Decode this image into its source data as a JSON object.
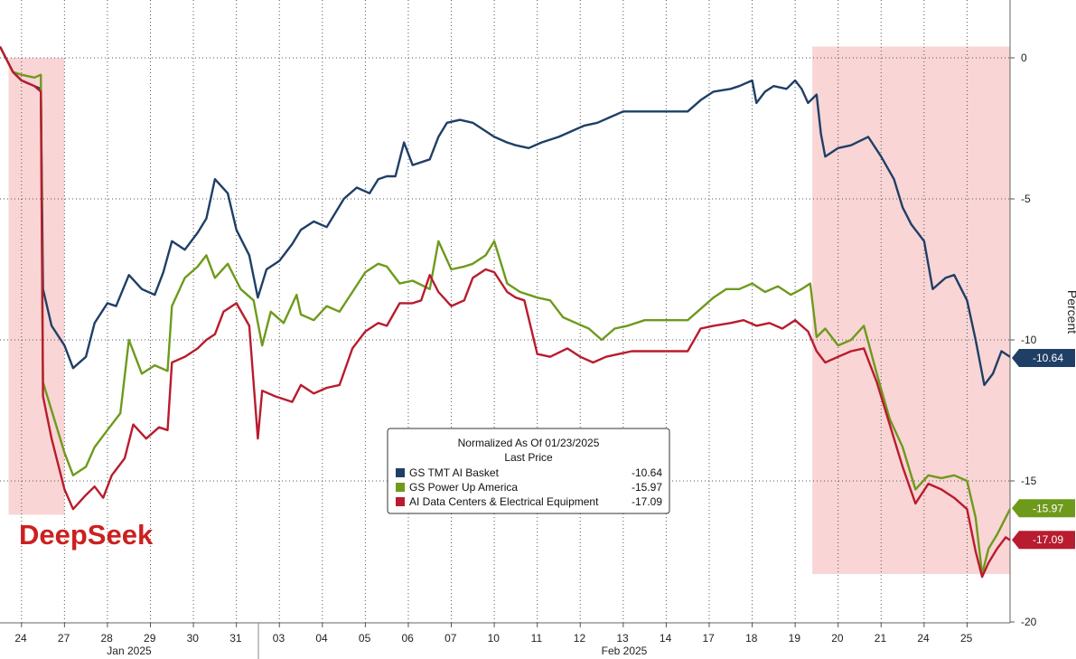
{
  "chart_data": {
    "type": "line",
    "title": "Normalized As Of 01/23/2025",
    "subtitle": "Last Price",
    "ylabel": "Percent",
    "ylim": [
      -20,
      1.5
    ],
    "yticks": [
      0,
      -5,
      -10,
      -15,
      -20
    ],
    "grid": true,
    "legend_position": "bottom-center",
    "x_ticks": [
      "24",
      "27",
      "28",
      "29",
      "30",
      "31",
      "03",
      "04",
      "05",
      "06",
      "07",
      "10",
      "11",
      "12",
      "13",
      "14",
      "17",
      "18",
      "19",
      "20",
      "21",
      "24",
      "25"
    ],
    "month_labels": [
      "Jan 2025",
      "Feb 2025"
    ],
    "x_range": [
      0,
      23.5
    ],
    "shaded_regions": [
      {
        "label": "DeepSeek",
        "from": 0.2,
        "to": 1.5,
        "y_from": 0,
        "y_to": -16.2
      },
      {
        "label": "",
        "from": 18.9,
        "to": 23.5,
        "y_from": 0.4,
        "y_to": -18.3
      }
    ],
    "annotations": [
      {
        "text": "DeepSeek"
      }
    ],
    "series": [
      {
        "name": "GS TMT AI Basket",
        "color": "#1f3f66",
        "last": "-10.64",
        "points": [
          [
            0.0,
            0.4
          ],
          [
            0.3,
            -0.5
          ],
          [
            0.5,
            -0.8
          ],
          [
            0.8,
            -1.0
          ],
          [
            0.95,
            -1.1
          ],
          [
            1.0,
            -8.2
          ],
          [
            1.2,
            -9.5
          ],
          [
            1.5,
            -10.2
          ],
          [
            1.7,
            -11.0
          ],
          [
            2.0,
            -10.6
          ],
          [
            2.2,
            -9.4
          ],
          [
            2.5,
            -8.7
          ],
          [
            2.7,
            -8.8
          ],
          [
            3.0,
            -7.7
          ],
          [
            3.3,
            -8.2
          ],
          [
            3.6,
            -8.4
          ],
          [
            3.8,
            -7.6
          ],
          [
            4.0,
            -6.5
          ],
          [
            4.3,
            -6.8
          ],
          [
            4.6,
            -6.2
          ],
          [
            4.8,
            -5.7
          ],
          [
            5.0,
            -4.3
          ],
          [
            5.3,
            -4.8
          ],
          [
            5.5,
            -6.1
          ],
          [
            5.8,
            -7.0
          ],
          [
            6.0,
            -8.5
          ],
          [
            6.2,
            -7.5
          ],
          [
            6.5,
            -7.2
          ],
          [
            6.8,
            -6.6
          ],
          [
            7.0,
            -6.1
          ],
          [
            7.3,
            -5.8
          ],
          [
            7.6,
            -6.0
          ],
          [
            8.0,
            -5.0
          ],
          [
            8.3,
            -4.6
          ],
          [
            8.6,
            -4.8
          ],
          [
            8.8,
            -4.3
          ],
          [
            9.0,
            -4.2
          ],
          [
            9.2,
            -4.2
          ],
          [
            9.4,
            -3.0
          ],
          [
            9.6,
            -3.8
          ],
          [
            10.0,
            -3.6
          ],
          [
            10.2,
            -2.8
          ],
          [
            10.4,
            -2.3
          ],
          [
            10.7,
            -2.2
          ],
          [
            11.0,
            -2.3
          ],
          [
            11.3,
            -2.6
          ],
          [
            11.5,
            -2.8
          ],
          [
            11.8,
            -3.0
          ],
          [
            12.0,
            -3.1
          ],
          [
            12.3,
            -3.2
          ],
          [
            12.6,
            -3.0
          ],
          [
            13.0,
            -2.8
          ],
          [
            13.3,
            -2.6
          ],
          [
            13.6,
            -2.4
          ],
          [
            13.9,
            -2.3
          ],
          [
            14.2,
            -2.1
          ],
          [
            14.5,
            -1.9
          ],
          [
            15.0,
            -1.9
          ],
          [
            15.5,
            -1.9
          ],
          [
            16.0,
            -1.9
          ],
          [
            16.3,
            -1.5
          ],
          [
            16.6,
            -1.2
          ],
          [
            17.0,
            -1.1
          ],
          [
            17.2,
            -1.0
          ],
          [
            17.5,
            -0.8
          ],
          [
            17.6,
            -1.6
          ],
          [
            17.8,
            -1.2
          ],
          [
            18.0,
            -1.0
          ],
          [
            18.3,
            -1.1
          ],
          [
            18.5,
            -0.8
          ],
          [
            18.65,
            -1.1
          ],
          [
            18.8,
            -1.6
          ],
          [
            19.0,
            -1.3
          ],
          [
            19.1,
            -2.7
          ],
          [
            19.2,
            -3.5
          ],
          [
            19.5,
            -3.2
          ],
          [
            19.8,
            -3.1
          ],
          [
            20.2,
            -2.8
          ],
          [
            20.5,
            -3.5
          ],
          [
            20.8,
            -4.3
          ],
          [
            21.0,
            -5.3
          ],
          [
            21.2,
            -5.9
          ],
          [
            21.5,
            -6.5
          ],
          [
            21.7,
            -8.2
          ],
          [
            22.0,
            -7.8
          ],
          [
            22.2,
            -7.7
          ],
          [
            22.5,
            -8.6
          ],
          [
            22.7,
            -10.0
          ],
          [
            22.9,
            -11.6
          ],
          [
            23.1,
            -11.2
          ],
          [
            23.3,
            -10.4
          ],
          [
            23.5,
            -10.6
          ]
        ]
      },
      {
        "name": "GS Power Up America",
        "color": "#6e9a1c",
        "last": "-15.97",
        "points": [
          [
            0.0,
            0.4
          ],
          [
            0.3,
            -0.5
          ],
          [
            0.5,
            -0.6
          ],
          [
            0.8,
            -0.7
          ],
          [
            0.95,
            -0.6
          ],
          [
            1.0,
            -11.5
          ],
          [
            1.2,
            -12.5
          ],
          [
            1.5,
            -14.0
          ],
          [
            1.7,
            -14.8
          ],
          [
            2.0,
            -14.5
          ],
          [
            2.2,
            -13.8
          ],
          [
            2.5,
            -13.2
          ],
          [
            2.8,
            -12.6
          ],
          [
            3.0,
            -10.0
          ],
          [
            3.3,
            -11.2
          ],
          [
            3.6,
            -10.9
          ],
          [
            3.9,
            -11.1
          ],
          [
            4.0,
            -8.8
          ],
          [
            4.3,
            -7.8
          ],
          [
            4.6,
            -7.4
          ],
          [
            4.8,
            -7.0
          ],
          [
            5.0,
            -7.8
          ],
          [
            5.3,
            -7.3
          ],
          [
            5.6,
            -8.2
          ],
          [
            5.9,
            -8.6
          ],
          [
            6.1,
            -10.2
          ],
          [
            6.3,
            -9.0
          ],
          [
            6.6,
            -9.4
          ],
          [
            6.9,
            -8.4
          ],
          [
            7.0,
            -9.1
          ],
          [
            7.3,
            -9.3
          ],
          [
            7.6,
            -8.8
          ],
          [
            7.9,
            -9.0
          ],
          [
            8.2,
            -8.3
          ],
          [
            8.5,
            -7.6
          ],
          [
            8.8,
            -7.3
          ],
          [
            9.0,
            -7.4
          ],
          [
            9.3,
            -8.0
          ],
          [
            9.6,
            -7.9
          ],
          [
            10.0,
            -8.2
          ],
          [
            10.2,
            -6.5
          ],
          [
            10.5,
            -7.5
          ],
          [
            10.8,
            -7.4
          ],
          [
            11.0,
            -7.3
          ],
          [
            11.3,
            -7.0
          ],
          [
            11.5,
            -6.5
          ],
          [
            11.8,
            -8.0
          ],
          [
            12.1,
            -8.3
          ],
          [
            12.5,
            -8.5
          ],
          [
            12.8,
            -8.6
          ],
          [
            13.1,
            -9.2
          ],
          [
            13.4,
            -9.4
          ],
          [
            13.7,
            -9.6
          ],
          [
            14.0,
            -10.0
          ],
          [
            14.3,
            -9.6
          ],
          [
            14.6,
            -9.5
          ],
          [
            15.0,
            -9.3
          ],
          [
            15.3,
            -9.3
          ],
          [
            15.6,
            -9.3
          ],
          [
            16.0,
            -9.3
          ],
          [
            16.3,
            -8.9
          ],
          [
            16.6,
            -8.5
          ],
          [
            16.9,
            -8.2
          ],
          [
            17.2,
            -8.2
          ],
          [
            17.5,
            -8.0
          ],
          [
            17.8,
            -8.3
          ],
          [
            18.1,
            -8.1
          ],
          [
            18.4,
            -8.4
          ],
          [
            18.65,
            -8.2
          ],
          [
            18.85,
            -8.0
          ],
          [
            19.0,
            -9.9
          ],
          [
            19.2,
            -9.6
          ],
          [
            19.5,
            -10.2
          ],
          [
            19.8,
            -10.0
          ],
          [
            20.1,
            -9.5
          ],
          [
            20.4,
            -11.2
          ],
          [
            20.7,
            -12.8
          ],
          [
            21.0,
            -13.8
          ],
          [
            21.3,
            -15.3
          ],
          [
            21.6,
            -14.8
          ],
          [
            21.9,
            -14.9
          ],
          [
            22.2,
            -14.8
          ],
          [
            22.5,
            -15.0
          ],
          [
            22.7,
            -16.3
          ],
          [
            22.85,
            -18.3
          ],
          [
            23.0,
            -17.4
          ],
          [
            23.2,
            -16.9
          ],
          [
            23.4,
            -16.3
          ],
          [
            23.5,
            -16.0
          ]
        ]
      },
      {
        "name": "AI Data Centers & Electrical Equipment",
        "color": "#b81c2e",
        "last": "-17.09",
        "points": [
          [
            0.0,
            0.4
          ],
          [
            0.3,
            -0.5
          ],
          [
            0.5,
            -0.8
          ],
          [
            0.8,
            -1.0
          ],
          [
            0.95,
            -1.2
          ],
          [
            1.0,
            -12.0
          ],
          [
            1.2,
            -13.5
          ],
          [
            1.5,
            -15.3
          ],
          [
            1.7,
            -16.0
          ],
          [
            2.0,
            -15.5
          ],
          [
            2.2,
            -15.2
          ],
          [
            2.4,
            -15.6
          ],
          [
            2.6,
            -14.8
          ],
          [
            2.9,
            -14.2
          ],
          [
            3.1,
            -13.0
          ],
          [
            3.4,
            -13.5
          ],
          [
            3.7,
            -13.1
          ],
          [
            3.9,
            -13.2
          ],
          [
            4.0,
            -10.8
          ],
          [
            4.3,
            -10.6
          ],
          [
            4.6,
            -10.3
          ],
          [
            4.8,
            -10.0
          ],
          [
            5.0,
            -9.8
          ],
          [
            5.2,
            -9.0
          ],
          [
            5.5,
            -8.7
          ],
          [
            5.8,
            -9.5
          ],
          [
            6.0,
            -13.5
          ],
          [
            6.1,
            -11.8
          ],
          [
            6.4,
            -12.0
          ],
          [
            6.8,
            -12.2
          ],
          [
            7.0,
            -11.6
          ],
          [
            7.3,
            -11.9
          ],
          [
            7.6,
            -11.7
          ],
          [
            7.9,
            -11.6
          ],
          [
            8.2,
            -10.3
          ],
          [
            8.5,
            -9.7
          ],
          [
            8.8,
            -9.4
          ],
          [
            9.0,
            -9.5
          ],
          [
            9.3,
            -8.7
          ],
          [
            9.6,
            -8.7
          ],
          [
            9.8,
            -8.6
          ],
          [
            10.0,
            -7.7
          ],
          [
            10.2,
            -8.3
          ],
          [
            10.5,
            -8.8
          ],
          [
            10.8,
            -8.6
          ],
          [
            11.0,
            -7.8
          ],
          [
            11.3,
            -7.5
          ],
          [
            11.5,
            -7.6
          ],
          [
            11.8,
            -8.3
          ],
          [
            12.0,
            -8.5
          ],
          [
            12.2,
            -8.6
          ],
          [
            12.5,
            -10.5
          ],
          [
            12.8,
            -10.6
          ],
          [
            13.2,
            -10.3
          ],
          [
            13.5,
            -10.6
          ],
          [
            13.8,
            -10.8
          ],
          [
            14.1,
            -10.6
          ],
          [
            14.4,
            -10.5
          ],
          [
            14.7,
            -10.4
          ],
          [
            15.0,
            -10.4
          ],
          [
            15.5,
            -10.4
          ],
          [
            16.0,
            -10.4
          ],
          [
            16.3,
            -9.6
          ],
          [
            16.6,
            -9.5
          ],
          [
            17.0,
            -9.4
          ],
          [
            17.3,
            -9.3
          ],
          [
            17.6,
            -9.5
          ],
          [
            17.9,
            -9.4
          ],
          [
            18.2,
            -9.6
          ],
          [
            18.5,
            -9.3
          ],
          [
            18.8,
            -9.7
          ],
          [
            19.0,
            -10.4
          ],
          [
            19.2,
            -10.8
          ],
          [
            19.5,
            -10.6
          ],
          [
            19.8,
            -10.4
          ],
          [
            20.1,
            -10.3
          ],
          [
            20.4,
            -11.5
          ],
          [
            20.7,
            -13.0
          ],
          [
            21.0,
            -14.5
          ],
          [
            21.3,
            -15.8
          ],
          [
            21.6,
            -15.1
          ],
          [
            21.9,
            -15.3
          ],
          [
            22.2,
            -15.6
          ],
          [
            22.5,
            -16.0
          ],
          [
            22.7,
            -17.5
          ],
          [
            22.85,
            -18.4
          ],
          [
            23.0,
            -17.9
          ],
          [
            23.2,
            -17.4
          ],
          [
            23.4,
            -17.0
          ],
          [
            23.5,
            -17.1
          ]
        ]
      }
    ]
  }
}
